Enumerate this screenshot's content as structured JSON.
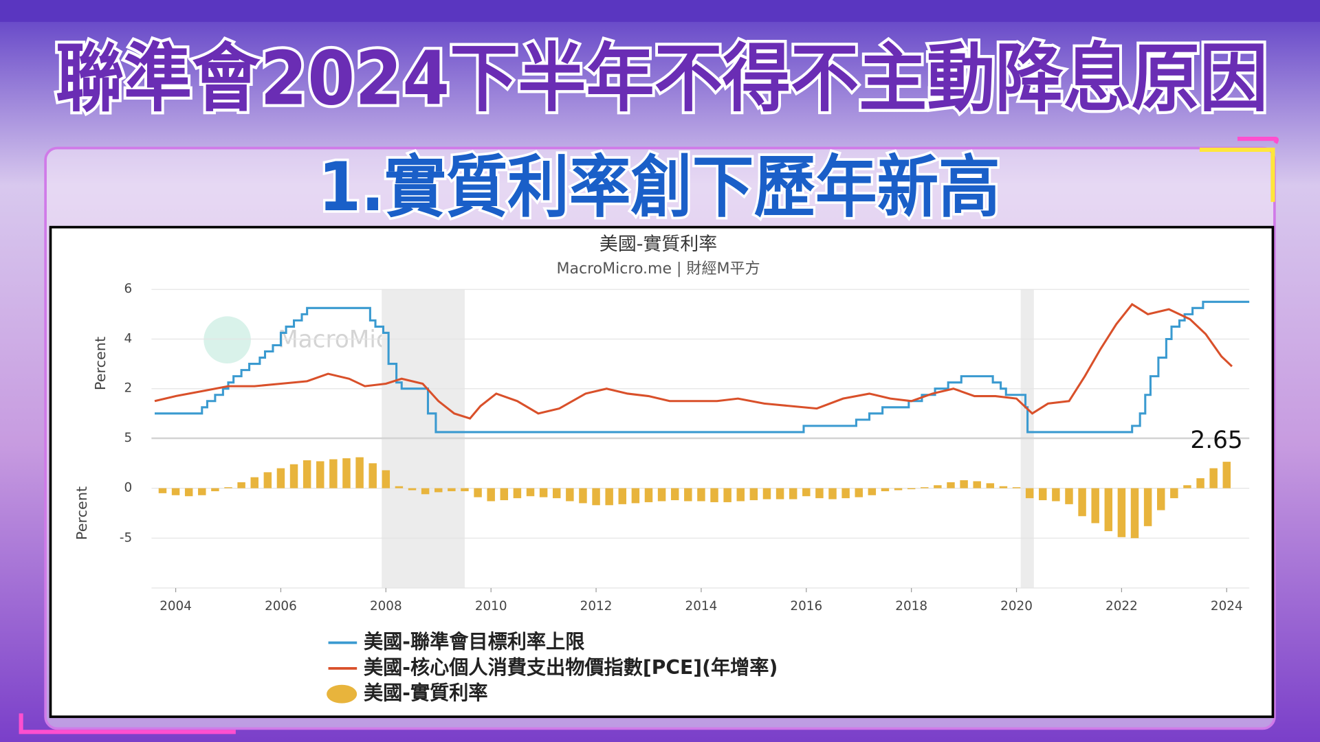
{
  "header": {
    "title": "聯準會2024下半年不得不主動降息原因",
    "subtitle": "1.實質利率創下歷年新高"
  },
  "chart_data": [
    {
      "type": "line",
      "title": "美國-實質利率",
      "subtitle": "MacroMicro.me | 財經M平方",
      "watermark": "MacroMicro",
      "y_label": "Percent",
      "xlim": [
        2003.54,
        2024.43
      ],
      "ylim": [
        0,
        6
      ],
      "yticks": [
        2,
        4,
        6
      ],
      "grid": true,
      "shaded_x": [
        [
          2007.92,
          2009.5
        ],
        [
          2020.08,
          2020.33
        ]
      ],
      "series": [
        {
          "name": "美國-聯準會目標利率上限",
          "color": "#3a9ad0",
          "step": true,
          "x": [
            2003.6,
            2004.5,
            2004.6,
            2004.75,
            2004.9,
            2005.0,
            2005.1,
            2005.25,
            2005.4,
            2005.6,
            2005.7,
            2005.85,
            2006.0,
            2006.1,
            2006.25,
            2006.4,
            2006.5,
            2007.7,
            2007.8,
            2007.95,
            2008.05,
            2008.2,
            2008.3,
            2008.8,
            2008.95,
            2015.95,
            2016.95,
            2017.2,
            2017.45,
            2017.95,
            2018.2,
            2018.45,
            2018.7,
            2018.95,
            2019.55,
            2019.7,
            2019.8,
            2020.17,
            2020.21,
            2022.2,
            2022.35,
            2022.45,
            2022.55,
            2022.7,
            2022.85,
            2022.95,
            2023.1,
            2023.2,
            2023.35,
            2023.55,
            2024.43
          ],
          "values": [
            1.0,
            1.25,
            1.5,
            1.75,
            2.0,
            2.25,
            2.5,
            2.75,
            3.0,
            3.25,
            3.5,
            3.75,
            4.25,
            4.5,
            4.75,
            5.0,
            5.25,
            4.75,
            4.5,
            4.25,
            3.0,
            2.25,
            2.0,
            1.0,
            0.25,
            0.5,
            0.75,
            1.0,
            1.25,
            1.5,
            1.75,
            2.0,
            2.25,
            2.5,
            2.25,
            2.0,
            1.75,
            1.25,
            0.25,
            0.5,
            1.0,
            1.75,
            2.5,
            3.25,
            4.0,
            4.5,
            4.75,
            5.0,
            5.25,
            5.5,
            5.5
          ]
        },
        {
          "name": "美國-核心個人消費支出物價指數[PCE](年增率)",
          "color": "#d9502a",
          "step": false,
          "x": [
            2003.6,
            2004.0,
            2004.5,
            2005.0,
            2005.5,
            2006.0,
            2006.5,
            2006.9,
            2007.3,
            2007.6,
            2008.0,
            2008.3,
            2008.7,
            2009.0,
            2009.3,
            2009.6,
            2009.8,
            2010.1,
            2010.5,
            2010.9,
            2011.3,
            2011.8,
            2012.2,
            2012.6,
            2013.0,
            2013.4,
            2013.8,
            2014.3,
            2014.7,
            2015.2,
            2015.7,
            2016.2,
            2016.7,
            2017.2,
            2017.6,
            2018.0,
            2018.4,
            2018.8,
            2019.2,
            2019.6,
            2020.0,
            2020.3,
            2020.6,
            2021.0,
            2021.3,
            2021.6,
            2021.9,
            2022.2,
            2022.5,
            2022.9,
            2023.3,
            2023.6,
            2023.9,
            2024.1
          ],
          "values": [
            1.5,
            1.7,
            1.9,
            2.1,
            2.1,
            2.2,
            2.3,
            2.6,
            2.4,
            2.1,
            2.2,
            2.4,
            2.2,
            1.5,
            1.0,
            0.8,
            1.3,
            1.8,
            1.5,
            1.0,
            1.2,
            1.8,
            2.0,
            1.8,
            1.7,
            1.5,
            1.5,
            1.5,
            1.6,
            1.4,
            1.3,
            1.2,
            1.6,
            1.8,
            1.6,
            1.5,
            1.8,
            2.0,
            1.7,
            1.7,
            1.6,
            1.0,
            1.4,
            1.5,
            2.5,
            3.6,
            4.6,
            5.4,
            5.0,
            5.2,
            4.8,
            4.2,
            3.3,
            2.9
          ]
        }
      ]
    },
    {
      "type": "bar",
      "y_label": "Percent",
      "xlim": [
        2003.54,
        2024.43
      ],
      "ylim": [
        -10,
        5
      ],
      "yticks": [
        -5,
        0,
        5
      ],
      "grid": true,
      "xticks": [
        2004,
        2006,
        2008,
        2010,
        2012,
        2014,
        2016,
        2018,
        2020,
        2022,
        2024
      ],
      "series": [
        {
          "name": "美國-實質利率",
          "color": "#e8b43c",
          "x": [
            2003.75,
            2004.0,
            2004.25,
            2004.5,
            2004.75,
            2005.0,
            2005.25,
            2005.5,
            2005.75,
            2006.0,
            2006.25,
            2006.5,
            2006.75,
            2007.0,
            2007.25,
            2007.5,
            2007.75,
            2008.0,
            2008.25,
            2008.5,
            2008.75,
            2009.0,
            2009.25,
            2009.5,
            2009.75,
            2010.0,
            2010.25,
            2010.5,
            2010.75,
            2011.0,
            2011.25,
            2011.5,
            2011.75,
            2012.0,
            2012.25,
            2012.5,
            2012.75,
            2013.0,
            2013.25,
            2013.5,
            2013.75,
            2014.0,
            2014.25,
            2014.5,
            2014.75,
            2015.0,
            2015.25,
            2015.5,
            2015.75,
            2016.0,
            2016.25,
            2016.5,
            2016.75,
            2017.0,
            2017.25,
            2017.5,
            2017.75,
            2018.0,
            2018.25,
            2018.5,
            2018.75,
            2019.0,
            2019.25,
            2019.5,
            2019.75,
            2020.0,
            2020.25,
            2020.5,
            2020.75,
            2021.0,
            2021.25,
            2021.5,
            2021.75,
            2022.0,
            2022.25,
            2022.5,
            2022.75,
            2023.0,
            2023.25,
            2023.5,
            2023.75,
            2024.0
          ],
          "values": [
            -0.5,
            -0.7,
            -0.8,
            -0.7,
            -0.3,
            0.1,
            0.6,
            1.1,
            1.6,
            2.0,
            2.4,
            2.8,
            2.7,
            2.9,
            3.0,
            3.1,
            2.5,
            1.8,
            0.2,
            -0.2,
            -0.6,
            -0.4,
            -0.3,
            -0.3,
            -0.9,
            -1.3,
            -1.2,
            -1.0,
            -0.8,
            -0.9,
            -1.0,
            -1.3,
            -1.5,
            -1.7,
            -1.7,
            -1.6,
            -1.5,
            -1.4,
            -1.3,
            -1.2,
            -1.3,
            -1.3,
            -1.4,
            -1.4,
            -1.3,
            -1.2,
            -1.1,
            -1.1,
            -1.1,
            -0.8,
            -1.0,
            -1.1,
            -1.0,
            -0.9,
            -0.7,
            -0.3,
            -0.2,
            -0.1,
            0.1,
            0.3,
            0.6,
            0.8,
            0.7,
            0.5,
            0.2,
            0.1,
            -1.0,
            -1.2,
            -1.3,
            -1.6,
            -2.8,
            -3.5,
            -4.3,
            -4.9,
            -5.0,
            -3.8,
            -2.2,
            -1.0,
            0.3,
            1.0,
            2.0,
            2.65
          ]
        }
      ]
    }
  ]
}
